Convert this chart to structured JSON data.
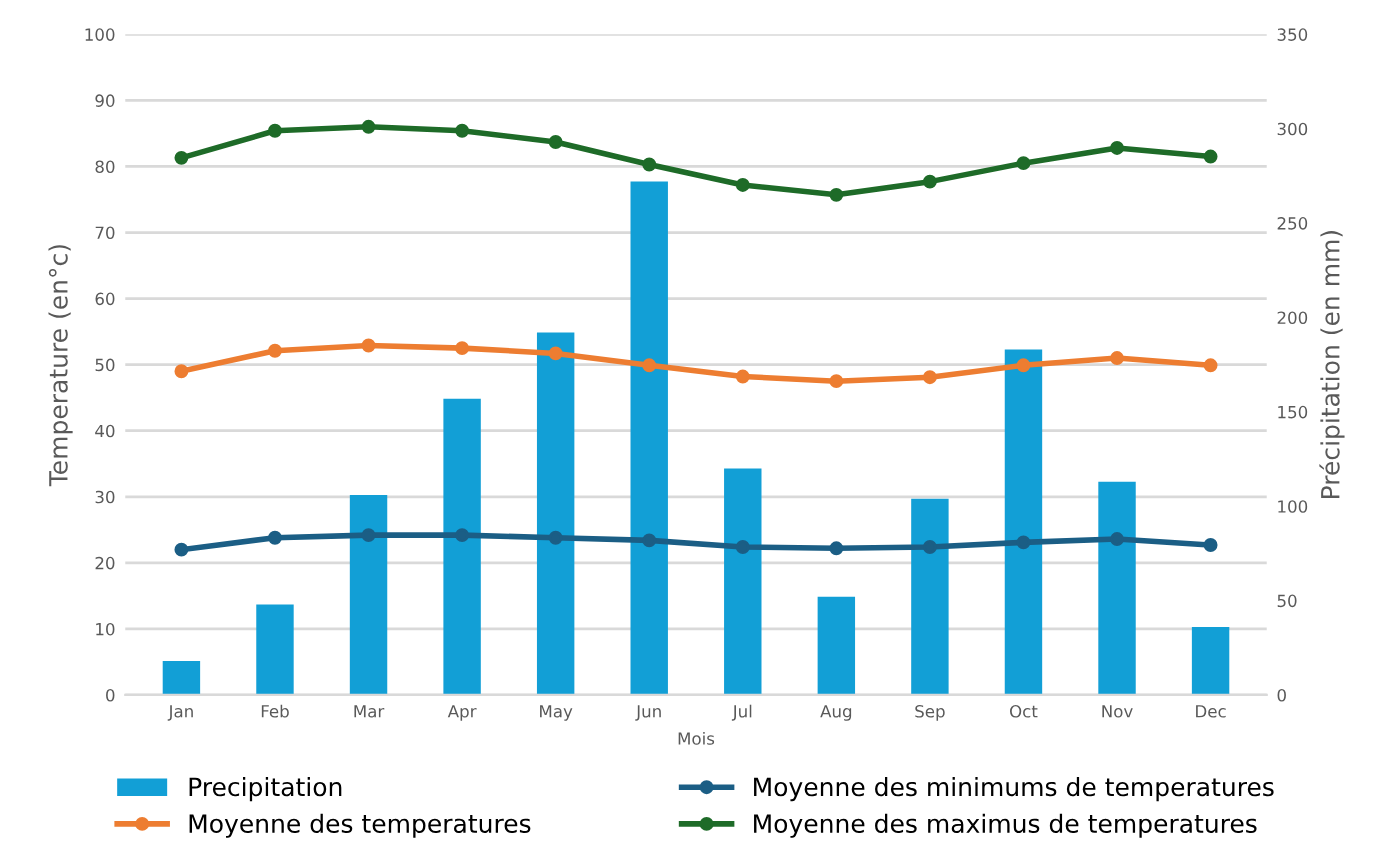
{
  "chart_data": {
    "type": "bar",
    "xlabel": "Mois",
    "ylabel": "Temperature (en°c)",
    "y2label": "Précipitation (en mm)",
    "categories": [
      "Jan",
      "Feb",
      "Mar",
      "Apr",
      "May",
      "Jun",
      "Jul",
      "Aug",
      "Sep",
      "Oct",
      "Nov",
      "Dec"
    ],
    "series": [
      {
        "name": "Precipitation",
        "axis": "y2",
        "color": "#129fd6",
        "values": [
          18,
          48,
          106,
          157,
          192,
          272,
          120,
          52,
          104,
          183,
          113,
          36
        ]
      },
      {
        "name": "Moyenne des minimums de temperatures",
        "type": "line",
        "color": "#1b5e85",
        "values": [
          22,
          23.8,
          24.2,
          24.2,
          23.8,
          23.4,
          22.4,
          22.2,
          22.4,
          23.1,
          23.6,
          22.7
        ]
      },
      {
        "name": "Moyenne des temperatures",
        "type": "line",
        "color": "#ed7d31",
        "values": [
          49,
          52.1,
          52.9,
          52.5,
          51.7,
          49.9,
          48.2,
          47.5,
          48.1,
          49.9,
          51,
          49.9
        ]
      },
      {
        "name": "Moyenne des maximus de temperatures",
        "type": "line",
        "color": "#1e6b28",
        "values": [
          81.3,
          85.4,
          86,
          85.4,
          83.7,
          80.3,
          77.2,
          75.7,
          77.7,
          80.5,
          82.8,
          81.5
        ]
      }
    ],
    "ylim": [
      0,
      100
    ],
    "yticks": [
      0,
      10,
      20,
      30,
      40,
      50,
      60,
      70,
      80,
      90,
      100
    ],
    "y2lim": [
      0,
      350
    ],
    "y2ticks": [
      0,
      50,
      100,
      150,
      200,
      250,
      300,
      350
    ],
    "grid": "y",
    "legend": "bottom",
    "marker": "circle"
  }
}
